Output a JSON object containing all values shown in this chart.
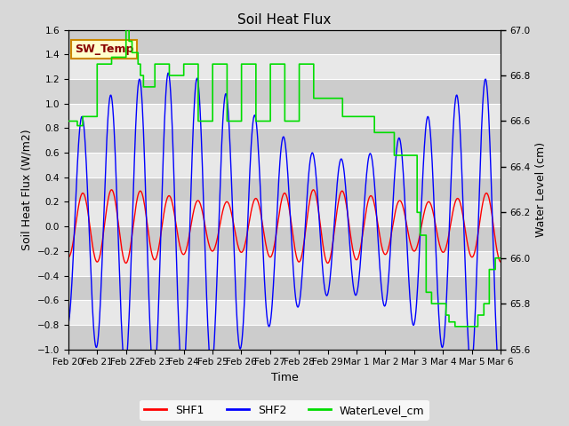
{
  "title": "Soil Heat Flux",
  "ylabel_left": "Soil Heat Flux (W/m2)",
  "ylabel_right": "Water Level (cm)",
  "xlabel": "Time",
  "ylim_left": [
    -1.0,
    1.6
  ],
  "ylim_right": [
    65.6,
    67.0
  ],
  "yticks_left": [
    -1.0,
    -0.8,
    -0.6,
    -0.4,
    -0.2,
    0.0,
    0.2,
    0.4,
    0.6,
    0.8,
    1.0,
    1.2,
    1.4,
    1.6
  ],
  "yticks_right": [
    65.6,
    65.8,
    66.0,
    66.2,
    66.4,
    66.6,
    66.8,
    67.0
  ],
  "xtick_labels": [
    "Feb 20",
    "Feb 21",
    "Feb 22",
    "Feb 23",
    "Feb 24",
    "Feb 25",
    "Feb 26",
    "Feb 27",
    "Feb 28",
    "Feb 29",
    "Mar 1",
    "Mar 2",
    "Mar 3",
    "Mar 4",
    "Mar 5",
    "Mar 6"
  ],
  "bg_color": "#d8d8d8",
  "plot_bg_color": "#e8e8e8",
  "band_color_dark": "#cccccc",
  "band_color_light": "#e8e8e8",
  "grid_color": "white",
  "shf1_color": "#ff0000",
  "shf2_color": "#0000ff",
  "water_color": "#00dd00",
  "sw_temp_text": "SW_Temp",
  "sw_temp_facecolor": "#ffffcc",
  "sw_temp_edgecolor": "#cc8800",
  "sw_temp_textcolor": "#880000",
  "legend_entries": [
    "SHF1",
    "SHF2",
    "WaterLevel_cm"
  ]
}
